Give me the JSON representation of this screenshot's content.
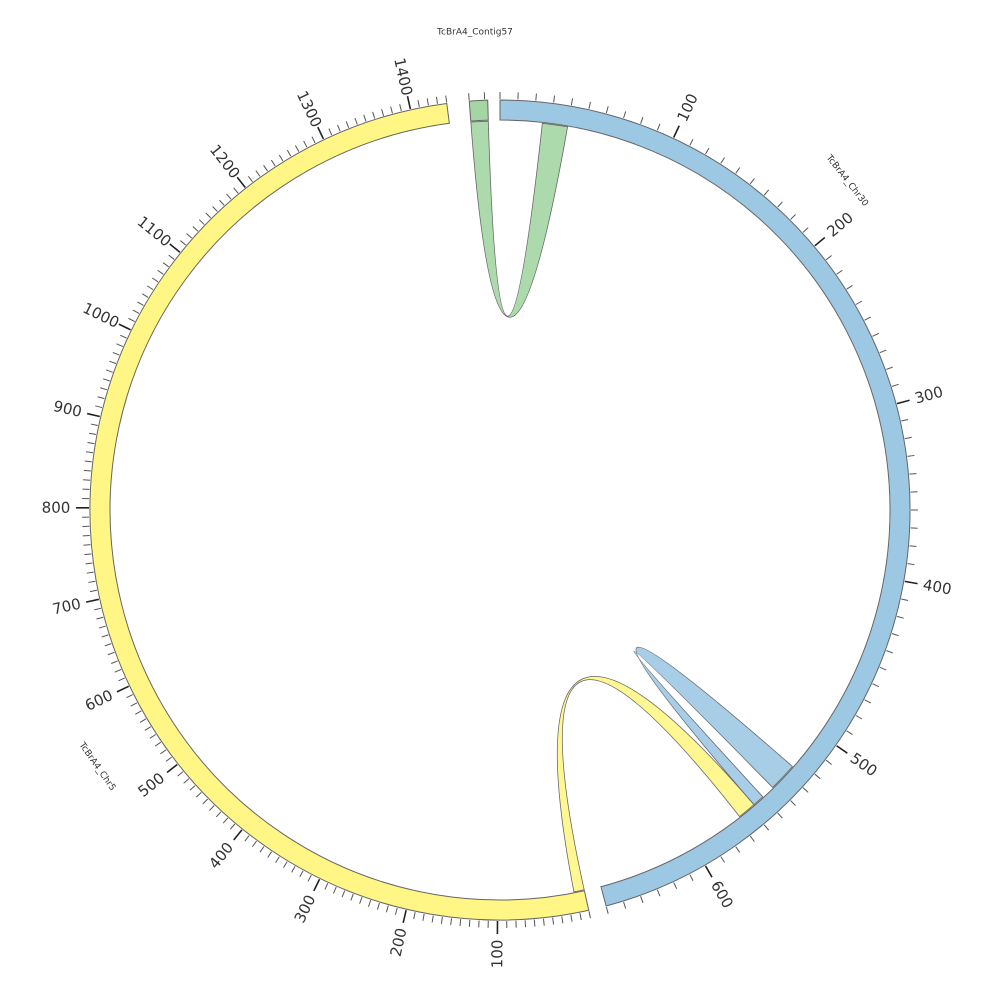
{
  "diagram": {
    "type": "circos",
    "sequences": [
      {
        "id": "contig57",
        "name": "TcBrA4_Contig57",
        "length": 12,
        "color": "#a3d6a3",
        "tick_labels": []
      },
      {
        "id": "chr30",
        "name": "TcBrA4_Chr30",
        "length": 660,
        "color": "#9dc8e4",
        "tick_labels": [
          "100",
          "200",
          "300",
          "400",
          "500",
          "600"
        ]
      },
      {
        "id": "chr5",
        "name": "TcBrA4_Chr5",
        "length": 1440,
        "color": "#fff685",
        "tick_labels": [
          "100",
          "200",
          "300",
          "400",
          "500",
          "600",
          "700",
          "800",
          "900",
          "1000",
          "1100",
          "1200",
          "1300",
          "1400"
        ]
      }
    ],
    "links": [
      {
        "from": {
          "seq": "contig57",
          "start": 0,
          "end": 12
        },
        "to": {
          "seq": "chr30",
          "start": 25,
          "end": 40
        },
        "color": "#a3d6a3"
      },
      {
        "from": {
          "seq": "chr30",
          "start": 525,
          "end": 542
        },
        "to": {
          "seq": "chr30",
          "start": 550,
          "end": 557
        },
        "color": "#9dc8e4"
      },
      {
        "from": {
          "seq": "chr5",
          "start": 0,
          "end": 12
        },
        "to": {
          "seq": "chr30",
          "start": 557,
          "end": 568
        },
        "color": "#fff685"
      }
    ]
  }
}
